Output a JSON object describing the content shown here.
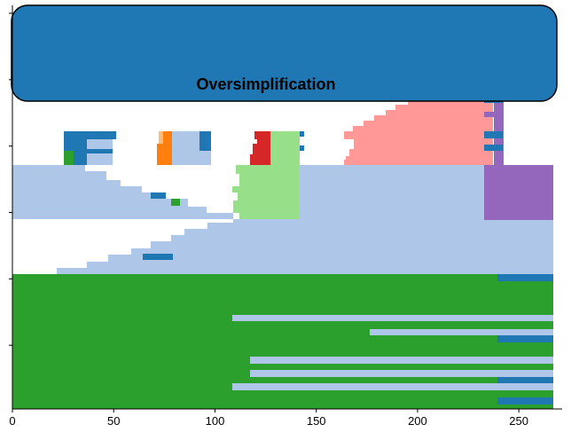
{
  "chart_data": {
    "type": "heatmap",
    "title": "Oversimplification",
    "xlabel": "",
    "ylabel": "",
    "xlim": [
      0,
      267
    ],
    "ylim": [
      0,
      1
    ],
    "xticks": [
      0,
      50,
      100,
      150,
      200,
      250
    ],
    "xtick_labels": [
      "0",
      "50",
      "100",
      "150",
      "200",
      "250"
    ],
    "ytick_count": 6,
    "colors": {
      "dark_blue": "#1f77b4",
      "light_blue": "#aec7e8",
      "green": "#2ca02c",
      "light_green": "#98df8a",
      "orange": "#ff7f0e",
      "light_orange": "#ffbb78",
      "red": "#d62728",
      "pink": "#ff9896",
      "purple": "#9467bd",
      "white": "#ffffff"
    },
    "regions": [
      {
        "name": "dark-blue-block-1",
        "color": "dark_blue",
        "x0": 25,
        "x1": 51,
        "y0": 0.36,
        "y1": 0.42
      },
      {
        "name": "green-patch",
        "color": "green",
        "x0": 25,
        "x1": 30,
        "y0": 0.36,
        "y1": 0.37
      },
      {
        "name": "light-orange-strip",
        "color": "light_orange",
        "x0": 71,
        "x1": 73,
        "y0": 0.37,
        "y1": 0.41
      },
      {
        "name": "orange-block",
        "color": "orange",
        "x0": 71,
        "x1": 79,
        "y0": 0.36,
        "y1": 0.39
      },
      {
        "name": "light-blue-block",
        "color": "light_blue",
        "x0": 79,
        "x1": 98,
        "y0": 0.36,
        "y1": 0.42
      },
      {
        "name": "dark-blue-block-2",
        "color": "dark_blue",
        "x0": 92,
        "x1": 98,
        "y0": 0.39,
        "y1": 0.42
      },
      {
        "name": "red-block",
        "color": "red",
        "x0": 116,
        "x1": 126,
        "y0": 0.36,
        "y1": 0.42
      },
      {
        "name": "light-green-block",
        "color": "light_green",
        "x0": 126,
        "x1": 142,
        "y0": 0.24,
        "y1": 0.42
      },
      {
        "name": "pink-block",
        "color": "pink",
        "x0": 163,
        "x1": 237,
        "y0": 0.36,
        "y1": 0.54
      },
      {
        "name": "purple-block",
        "color": "purple",
        "x0": 232,
        "x1": 267,
        "y0": 0.24,
        "y1": 0.36
      },
      {
        "name": "purple-strip",
        "color": "purple",
        "x0": 237,
        "x1": 242,
        "y0": 0.36,
        "y1": 0.54
      },
      {
        "name": "light-blue-band",
        "color": "light_blue",
        "x0": 0,
        "x1": 267,
        "y0": 0.24,
        "y1": 0.36
      },
      {
        "name": "light-blue-lower-band",
        "color": "light_blue",
        "x0": 22,
        "x1": 267,
        "y0": 0.2,
        "y1": 0.28
      },
      {
        "name": "green-base",
        "color": "green",
        "x0": 0,
        "x1": 267,
        "y0": 0,
        "y1": 0.2
      },
      {
        "name": "dark-blue-bar-top",
        "color": "dark_blue",
        "x0": 239,
        "x1": 267,
        "y0": 0.19,
        "y1": 0.2
      },
      {
        "name": "light-blue-line-1",
        "color": "light_blue",
        "x0": 108,
        "x1": 267,
        "y0": 0.13,
        "y1": 0.14
      },
      {
        "name": "light-blue-line-2",
        "color": "light_blue",
        "x0": 176,
        "x1": 267,
        "y0": 0.11,
        "y1": 0.12
      },
      {
        "name": "dark-blue-bar-mid",
        "color": "dark_blue",
        "x0": 239,
        "x1": 267,
        "y0": 0.1,
        "y1": 0.11
      },
      {
        "name": "light-blue-line-3",
        "color": "light_blue",
        "x0": 117,
        "x1": 267,
        "y0": 0.07,
        "y1": 0.08
      },
      {
        "name": "light-blue-line-4",
        "color": "light_blue",
        "x0": 117,
        "x1": 267,
        "y0": 0.05,
        "y1": 0.06
      },
      {
        "name": "dark-blue-bar-low",
        "color": "dark_blue",
        "x0": 239,
        "x1": 267,
        "y0": 0.04,
        "y1": 0.05
      },
      {
        "name": "light-blue-line-5",
        "color": "light_blue",
        "x0": 108,
        "x1": 267,
        "y0": 0.03,
        "y1": 0.04
      },
      {
        "name": "dark-blue-bar-bottom",
        "color": "dark_blue",
        "x0": 239,
        "x1": 267,
        "y0": 0,
        "y1": 0.01
      }
    ]
  }
}
